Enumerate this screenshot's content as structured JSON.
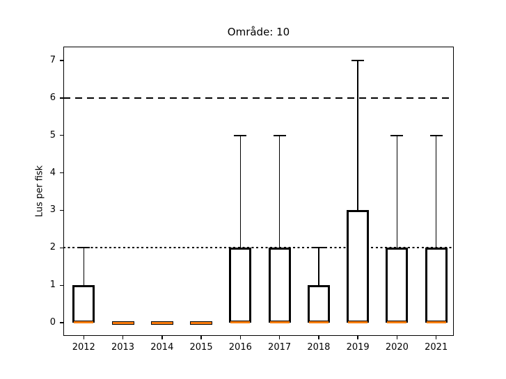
{
  "chart_data": {
    "type": "boxplot",
    "title": "Område: 10",
    "ylabel": "Lus per fisk",
    "xlabel": "",
    "categories": [
      "2012",
      "2013",
      "2014",
      "2015",
      "2016",
      "2017",
      "2018",
      "2019",
      "2020",
      "2021"
    ],
    "boxes": [
      {
        "category": "2012",
        "min": 0,
        "q1": 0,
        "median": 0,
        "q3": 1,
        "whisker_high": 2
      },
      {
        "category": "2013",
        "min": 0,
        "q1": 0,
        "median": 0,
        "q3": 0,
        "whisker_high": 0
      },
      {
        "category": "2014",
        "min": 0,
        "q1": 0,
        "median": 0,
        "q3": 0,
        "whisker_high": 0
      },
      {
        "category": "2015",
        "min": 0,
        "q1": 0,
        "median": 0,
        "q3": 0,
        "whisker_high": 0
      },
      {
        "category": "2016",
        "min": 0,
        "q1": 0,
        "median": 0,
        "q3": 2,
        "whisker_high": 5
      },
      {
        "category": "2017",
        "min": 0,
        "q1": 0,
        "median": 0,
        "q3": 2,
        "whisker_high": 5
      },
      {
        "category": "2018",
        "min": 0,
        "q1": 0,
        "median": 0,
        "q3": 1,
        "whisker_high": 2
      },
      {
        "category": "2019",
        "min": 0,
        "q1": 0,
        "median": 0,
        "q3": 3,
        "whisker_high": 7
      },
      {
        "category": "2020",
        "min": 0,
        "q1": 0,
        "median": 0,
        "q3": 2,
        "whisker_high": 5
      },
      {
        "category": "2021",
        "min": 0,
        "q1": 0,
        "median": 0,
        "q3": 2,
        "whisker_high": 5
      }
    ],
    "yticks": [
      0,
      1,
      2,
      3,
      4,
      5,
      6,
      7
    ],
    "ylim": [
      -0.35,
      7.37
    ],
    "xlim": [
      0.48,
      10.45
    ],
    "grid": false,
    "legend": null,
    "reference_lines": [
      {
        "y": 6,
        "style": "dashed",
        "color": "#000000"
      },
      {
        "y": 2,
        "style": "dotted",
        "color": "#000000"
      }
    ],
    "colors": {
      "box_edge": "#000000",
      "box_fill": "#ffffff",
      "median": "#ff7f0e",
      "whisker": "#000000",
      "spine": "#000000",
      "text": "#000000",
      "background": "#ffffff"
    }
  }
}
